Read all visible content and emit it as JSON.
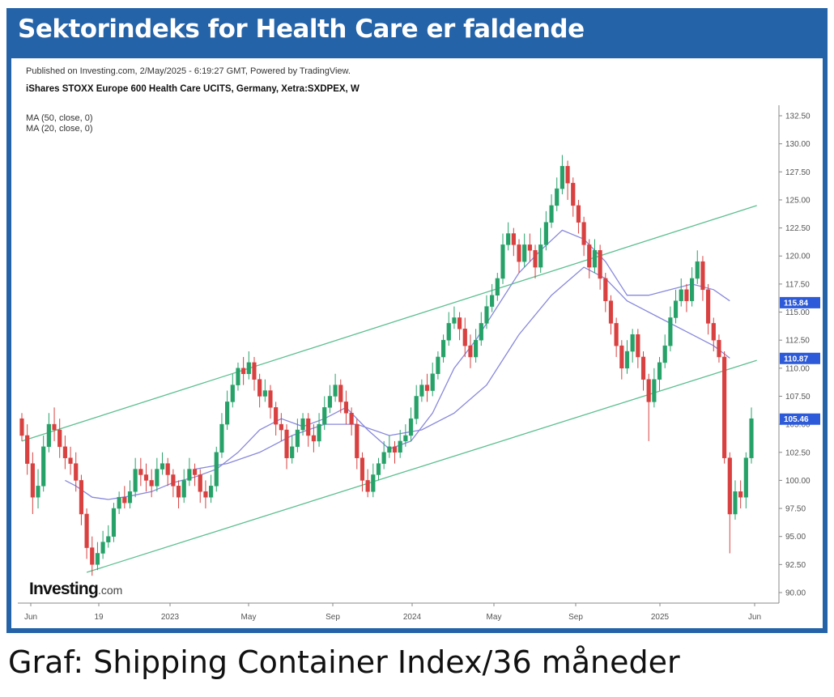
{
  "title": "Sektorindeks for Health Care er faldende",
  "published": "Published on Investing.com, 2/May/2025 - 6:19:27 GMT, Powered by TradingView.",
  "instrument": "iShares STOXX Europe 600 Health Care UCITS, Germany, Xetra:SXDPEX, W",
  "ma_labels": [
    "MA (50, close, 0)",
    "MA (20, close, 0)"
  ],
  "caption": "Graf: Shipping Container Index/36 måneder",
  "logo": {
    "word": "Investing",
    "suffix": ".com"
  },
  "colors": {
    "frame": "#2563a8",
    "up": "#26a269",
    "down": "#d94040",
    "ma": "#8888dd",
    "channel": "#5cbf90",
    "tag": "#2c5ad8"
  },
  "chart_data": {
    "type": "candlestick",
    "x_ticks": [
      "Jun",
      "19",
      "2023",
      "May",
      "Sep",
      "2024",
      "May",
      "Sep",
      "2025",
      "Jun"
    ],
    "y_ticks": [
      "132.50",
      "130.00",
      "127.50",
      "125.00",
      "122.50",
      "120.00",
      "117.50",
      "115.00",
      "112.50",
      "110.00",
      "107.50",
      "105.00",
      "102.50",
      "100.00",
      "97.50",
      "95.00",
      "92.50",
      "90.00"
    ],
    "ylim": [
      89,
      133.5
    ],
    "price_tags": [
      {
        "label": "115.84",
        "value": 115.84
      },
      {
        "label": "110.87",
        "value": 110.87
      },
      {
        "label": "105.46",
        "value": 105.46
      }
    ],
    "candles": [
      [
        105.5,
        104,
        106,
        103.5
      ],
      [
        104,
        101.5,
        105,
        100.5
      ],
      [
        101.5,
        98.5,
        102.5,
        97
      ],
      [
        98.5,
        99.5,
        101,
        97.5
      ],
      [
        99.5,
        103,
        104,
        99
      ],
      [
        103,
        105,
        106,
        102.5
      ],
      [
        105,
        104.5,
        106.5,
        103.5
      ],
      [
        104.5,
        103,
        105.5,
        102
      ],
      [
        103,
        102,
        104,
        101
      ],
      [
        102,
        101.5,
        103,
        100.5
      ],
      [
        101.5,
        100,
        102.5,
        99
      ],
      [
        100,
        97,
        100.5,
        96
      ],
      [
        97,
        94,
        97.5,
        93
      ],
      [
        94,
        92.5,
        95,
        91.5
      ],
      [
        92.5,
        93.5,
        94.5,
        92
      ],
      [
        93.5,
        94.5,
        95.5,
        93
      ],
      [
        94.5,
        95,
        96,
        94
      ],
      [
        95,
        97.5,
        98,
        94.5
      ],
      [
        97.5,
        98.5,
        99,
        97
      ],
      [
        98.5,
        98,
        99.5,
        97.5
      ],
      [
        98,
        99,
        100,
        97.5
      ],
      [
        99,
        101,
        102,
        98.5
      ],
      [
        101,
        100.5,
        102,
        99.5
      ],
      [
        100.5,
        100,
        101.5,
        99
      ],
      [
        100,
        99.5,
        101,
        98.5
      ],
      [
        99.5,
        101,
        102,
        99
      ],
      [
        101,
        101.5,
        102.5,
        100.5
      ],
      [
        101.5,
        100.5,
        102,
        99.5
      ],
      [
        100.5,
        99.5,
        101,
        98.5
      ],
      [
        99.5,
        98.5,
        100,
        97.5
      ],
      [
        98.5,
        100,
        101,
        98
      ],
      [
        100,
        101,
        102,
        99.5
      ],
      [
        101,
        100.5,
        101.5,
        99.5
      ],
      [
        100.5,
        99,
        101,
        98
      ],
      [
        99,
        98.5,
        100,
        97.5
      ],
      [
        98.5,
        99.5,
        100.5,
        98
      ],
      [
        99.5,
        102.5,
        103,
        99
      ],
      [
        102.5,
        105,
        106,
        102
      ],
      [
        105,
        107,
        108,
        104.5
      ],
      [
        107,
        108.5,
        109.5,
        106.5
      ],
      [
        108.5,
        110,
        110.5,
        108
      ],
      [
        110,
        109.5,
        111,
        108.5
      ],
      [
        109.5,
        110.5,
        111.5,
        109
      ],
      [
        110.5,
        109,
        111,
        108
      ],
      [
        109,
        107.5,
        109.5,
        106.5
      ],
      [
        107.5,
        108,
        109,
        107
      ],
      [
        108,
        106.5,
        108.5,
        105.5
      ],
      [
        106.5,
        105,
        107,
        104
      ],
      [
        105,
        104.5,
        106,
        103.5
      ],
      [
        104.5,
        102,
        105,
        101
      ],
      [
        102,
        103,
        104,
        101.5
      ],
      [
        103,
        104.5,
        105.5,
        102.5
      ],
      [
        104.5,
        105.5,
        106,
        104
      ],
      [
        105.5,
        104,
        106,
        103
      ],
      [
        104,
        103.5,
        105,
        102.5
      ],
      [
        103.5,
        105,
        106,
        103
      ],
      [
        105,
        106.5,
        107.5,
        104.5
      ],
      [
        106.5,
        107.5,
        108.5,
        106
      ],
      [
        107.5,
        108.5,
        109.5,
        107
      ],
      [
        108.5,
        107,
        109,
        106
      ],
      [
        107,
        106,
        108,
        105
      ],
      [
        106,
        105,
        106.5,
        104
      ],
      [
        105,
        102,
        105.5,
        101
      ],
      [
        102,
        100,
        102.5,
        99
      ],
      [
        100,
        99,
        101,
        98.5
      ],
      [
        99,
        100.5,
        101.5,
        98.5
      ],
      [
        100.5,
        101.5,
        102,
        100
      ],
      [
        101.5,
        102.5,
        103.5,
        101
      ],
      [
        102.5,
        103,
        104,
        102
      ],
      [
        103,
        102.5,
        103.5,
        101.5
      ],
      [
        102.5,
        103.5,
        104.5,
        102
      ],
      [
        103.5,
        104,
        105,
        103
      ],
      [
        104,
        105.5,
        106.5,
        103.5
      ],
      [
        105.5,
        107.5,
        108.5,
        105
      ],
      [
        107.5,
        108.5,
        109,
        107
      ],
      [
        108.5,
        108,
        109.5,
        107
      ],
      [
        108,
        109.5,
        110.5,
        107.5
      ],
      [
        109.5,
        111,
        111.5,
        109
      ],
      [
        111,
        112.5,
        113,
        110.5
      ],
      [
        112.5,
        114,
        115,
        112
      ],
      [
        114,
        114.5,
        115.5,
        113.5
      ],
      [
        114.5,
        113.5,
        115,
        112.5
      ],
      [
        113.5,
        112,
        114.5,
        111
      ],
      [
        112,
        111,
        113,
        110
      ],
      [
        111,
        112.5,
        113.5,
        110.5
      ],
      [
        112.5,
        114,
        115,
        112
      ],
      [
        114,
        115.5,
        116.5,
        113.5
      ],
      [
        115.5,
        116.5,
        117.5,
        115
      ],
      [
        116.5,
        118,
        118.5,
        116
      ],
      [
        118,
        121,
        122,
        117.5
      ],
      [
        121,
        122,
        123,
        120.5
      ],
      [
        122,
        121,
        122.5,
        120
      ],
      [
        121,
        119.5,
        121.5,
        118.5
      ],
      [
        119.5,
        121,
        122,
        119
      ],
      [
        121,
        120.5,
        122,
        119.5
      ],
      [
        120.5,
        119,
        121,
        118
      ],
      [
        119,
        121,
        122.5,
        118.5
      ],
      [
        121,
        123,
        124,
        120.5
      ],
      [
        123,
        124.5,
        125.5,
        122.5
      ],
      [
        124.5,
        126,
        127,
        124
      ],
      [
        126,
        128,
        129,
        125.5
      ],
      [
        128,
        126.5,
        128.5,
        125
      ],
      [
        126.5,
        124.5,
        127,
        123.5
      ],
      [
        124.5,
        123,
        125,
        122
      ],
      [
        123,
        121,
        123.5,
        120
      ],
      [
        121,
        119,
        121.5,
        118
      ],
      [
        119,
        120.5,
        121.5,
        118.5
      ],
      [
        120.5,
        118,
        121,
        117
      ],
      [
        118,
        116,
        118.5,
        115
      ],
      [
        116,
        114,
        116.5,
        113
      ],
      [
        114,
        112,
        114.5,
        111
      ],
      [
        112,
        110,
        112.5,
        109
      ],
      [
        110,
        111.5,
        112.5,
        109.5
      ],
      [
        111.5,
        113,
        113.5,
        110.5
      ],
      [
        113,
        111,
        113.5,
        110
      ],
      [
        111,
        109,
        111.5,
        108
      ],
      [
        109,
        107,
        109.5,
        103.5
      ],
      [
        107,
        109,
        110,
        106.5
      ],
      [
        109,
        110.5,
        111,
        108
      ],
      [
        110.5,
        112,
        113,
        110
      ],
      [
        112,
        114.5,
        115.5,
        111.5
      ],
      [
        114.5,
        116,
        117,
        114
      ],
      [
        116,
        117,
        118,
        115.5
      ],
      [
        117,
        116,
        117.5,
        115
      ],
      [
        116,
        118,
        119,
        115.5
      ],
      [
        118,
        119.5,
        120.5,
        117.5
      ],
      [
        119.5,
        117,
        120,
        116
      ],
      [
        117,
        114,
        117.5,
        113
      ],
      [
        114,
        112.5,
        114.5,
        111.5
      ],
      [
        112.5,
        111,
        113,
        110.5
      ],
      [
        111,
        102,
        111.5,
        101.5
      ],
      [
        102,
        97,
        102.5,
        93.5
      ],
      [
        97,
        99,
        100,
        96.5
      ],
      [
        99,
        98.5,
        100,
        97.5
      ],
      [
        98.5,
        102,
        102.5,
        97.5
      ],
      [
        102,
        105.5,
        106.5,
        101.5
      ]
    ],
    "ma20": [
      [
        8,
        100
      ],
      [
        10,
        99.5
      ],
      [
        13,
        98.5
      ],
      [
        16,
        98.3
      ],
      [
        20,
        98.6
      ],
      [
        24,
        99
      ],
      [
        28,
        99.8
      ],
      [
        32,
        100.3
      ],
      [
        36,
        101
      ],
      [
        40,
        102.5
      ],
      [
        44,
        104.5
      ],
      [
        48,
        105.5
      ],
      [
        52,
        104.8
      ],
      [
        56,
        105.5
      ],
      [
        60,
        106.5
      ],
      [
        64,
        104.5
      ],
      [
        68,
        102.8
      ],
      [
        72,
        103.5
      ],
      [
        76,
        106
      ],
      [
        80,
        110
      ],
      [
        84,
        112.5
      ],
      [
        88,
        115.5
      ],
      [
        92,
        118.5
      ],
      [
        96,
        120.5
      ],
      [
        100,
        122.3
      ],
      [
        104,
        121.5
      ],
      [
        108,
        119.5
      ],
      [
        112,
        116.5
      ],
      [
        116,
        116.5
      ],
      [
        120,
        117
      ],
      [
        124,
        117.5
      ],
      [
        128,
        117
      ],
      [
        131,
        116
      ]
    ],
    "ma50": [
      [
        32,
        101
      ],
      [
        38,
        101.5
      ],
      [
        44,
        102.5
      ],
      [
        50,
        104
      ],
      [
        56,
        105
      ],
      [
        62,
        105
      ],
      [
        68,
        104
      ],
      [
        74,
        104.5
      ],
      [
        80,
        106
      ],
      [
        86,
        108.5
      ],
      [
        92,
        113
      ],
      [
        98,
        116.5
      ],
      [
        104,
        119
      ],
      [
        108,
        118
      ],
      [
        112,
        116
      ],
      [
        118,
        114.5
      ],
      [
        124,
        113
      ],
      [
        128,
        112
      ],
      [
        131,
        110.9
      ]
    ],
    "channel": [
      {
        "points": [
          [
            0,
            103.5
          ],
          [
            136,
            124.5
          ]
        ]
      },
      {
        "points": [
          [
            12,
            91.8
          ],
          [
            136,
            110.7
          ]
        ]
      }
    ]
  }
}
